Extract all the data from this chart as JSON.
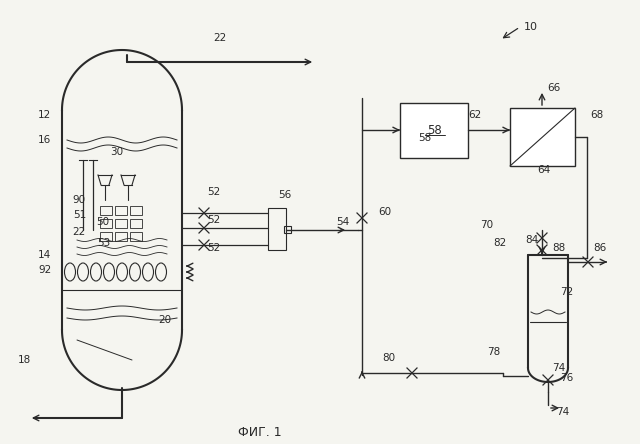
{
  "title": "ФИГ. 1",
  "bg_color": "#f5f5f0",
  "line_color": "#2a2a2a",
  "fig_ref": "10"
}
